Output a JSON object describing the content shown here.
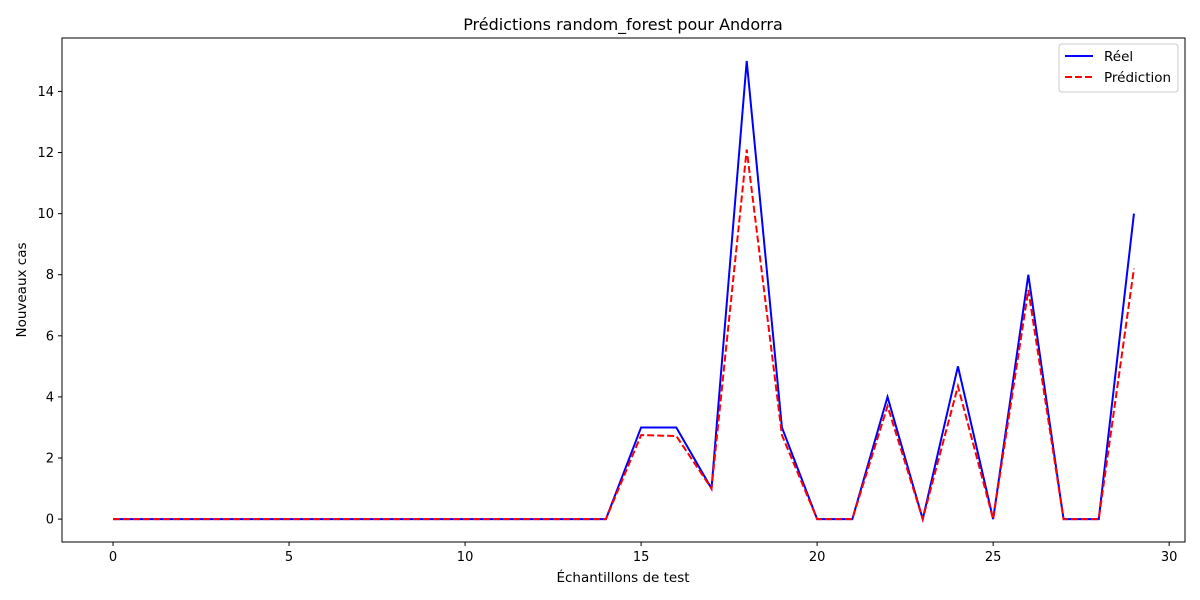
{
  "chart_data": {
    "type": "line",
    "title": "Prédictions random_forest pour Andorra",
    "xlabel": "Échantillons de test",
    "ylabel": "Nouveaux cas",
    "xlim": [
      -1.45,
      30.45
    ],
    "ylim": [
      -0.75,
      15.75
    ],
    "xticks": [
      0,
      5,
      10,
      15,
      20,
      25,
      30
    ],
    "yticks": [
      0,
      2,
      4,
      6,
      8,
      10,
      12,
      14
    ],
    "grid": false,
    "legend_position": "top-right",
    "x": [
      0,
      1,
      2,
      3,
      4,
      5,
      6,
      7,
      8,
      9,
      10,
      11,
      12,
      13,
      14,
      15,
      16,
      17,
      18,
      19,
      20,
      21,
      22,
      23,
      24,
      25,
      26,
      27,
      28,
      29
    ],
    "series": [
      {
        "name": "Réel",
        "color": "#0000ff",
        "style": "solid",
        "values": [
          0,
          0,
          0,
          0,
          0,
          0,
          0,
          0,
          0,
          0,
          0,
          0,
          0,
          0,
          0,
          3,
          3,
          1,
          15,
          3,
          0,
          0,
          4,
          0,
          5,
          0,
          8,
          0,
          0,
          10
        ]
      },
      {
        "name": "Prédiction",
        "color": "#ff0000",
        "style": "dashed",
        "values": [
          0,
          0,
          0,
          0,
          0,
          0,
          0,
          0,
          0,
          0,
          0,
          0,
          0,
          0,
          0,
          2.75,
          2.72,
          1,
          12.1,
          2.75,
          0,
          0,
          3.7,
          0,
          4.35,
          0,
          7.5,
          0,
          0,
          8.2
        ]
      }
    ]
  }
}
